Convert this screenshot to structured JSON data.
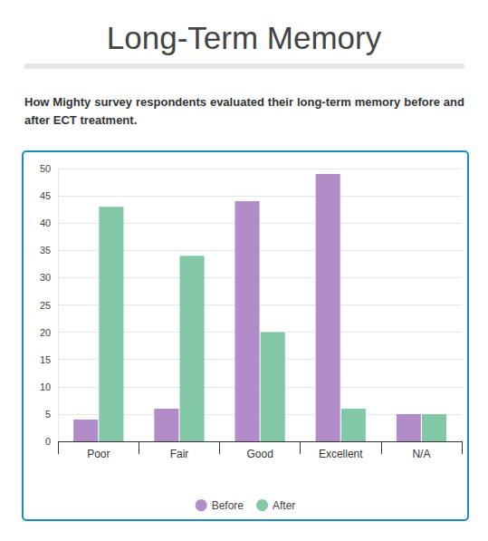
{
  "chart_data": {
    "type": "bar",
    "title": "Long-Term Memory",
    "subtitle": "How Mighty survey respondents evaluated their long-term memory before and after ECT treatment.",
    "categories": [
      "Poor",
      "Fair",
      "Good",
      "Excellent",
      "N/A"
    ],
    "series": [
      {
        "name": "Before",
        "color": "#b18cc9",
        "values": [
          4,
          6,
          44,
          49,
          5
        ]
      },
      {
        "name": "After",
        "color": "#82c8a6",
        "values": [
          43,
          34,
          20,
          6,
          5
        ]
      }
    ],
    "ylim": [
      0,
      50
    ],
    "yticks": [
      0,
      5,
      10,
      15,
      20,
      25,
      30,
      35,
      40,
      45,
      50
    ],
    "grid": true,
    "legend": "bottom"
  }
}
